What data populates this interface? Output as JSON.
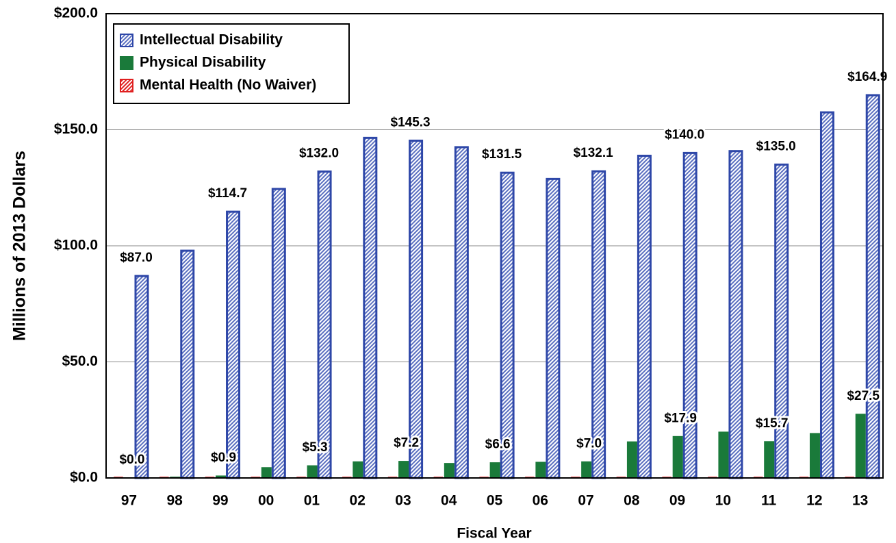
{
  "chart_data": {
    "type": "bar",
    "xlabel": "Fiscal Year",
    "ylabel": "Millions of 2013 Dollars",
    "categories": [
      "97",
      "98",
      "99",
      "00",
      "01",
      "02",
      "03",
      "04",
      "05",
      "06",
      "07",
      "08",
      "09",
      "10",
      "11",
      "12",
      "13"
    ],
    "series": [
      {
        "name": "Intellectual Disability",
        "color": "#2e47a8",
        "values": [
          87.0,
          97.9,
          114.7,
          124.5,
          132.0,
          146.5,
          145.3,
          142.5,
          131.5,
          128.8,
          132.1,
          138.8,
          140.0,
          140.8,
          135.0,
          157.5,
          164.9
        ],
        "value_labels": [
          "$87.0",
          null,
          "$114.7",
          null,
          "$132.0",
          null,
          "$145.3",
          null,
          "$131.5",
          null,
          "$132.1",
          null,
          "$140.0",
          null,
          "$135.0",
          null,
          "$164.9"
        ]
      },
      {
        "name": "Physical Disability",
        "color": "#1a7a3a",
        "values": [
          0.0,
          0.4,
          0.9,
          4.5,
          5.3,
          7.0,
          7.2,
          6.3,
          6.6,
          6.8,
          7.0,
          15.6,
          17.9,
          19.8,
          15.7,
          19.2,
          27.5
        ],
        "value_labels": [
          "$0.0",
          null,
          "$0.9",
          null,
          "$5.3",
          null,
          "$7.2",
          null,
          "$6.6",
          null,
          "$7.0",
          null,
          "$17.9",
          null,
          "$15.7",
          null,
          "$27.5"
        ]
      },
      {
        "name": "Mental Health (No Waiver)",
        "color": "#e02020",
        "values": [
          0.3,
          0.3,
          0.3,
          0.3,
          0.3,
          0.3,
          0.3,
          0.3,
          0.3,
          0.3,
          0.3,
          0.3,
          0.3,
          0.3,
          0.3,
          0.3,
          0.3
        ]
      }
    ],
    "ylim": [
      0,
      200
    ],
    "yticks": [
      {
        "value": 0,
        "label": "$0.0"
      },
      {
        "value": 50,
        "label": "$50.0"
      },
      {
        "value": 100,
        "label": "$100.0"
      },
      {
        "value": 150,
        "label": "$150.0"
      },
      {
        "value": 200,
        "label": "$200.0"
      }
    ],
    "grid": true,
    "legend": "upper left"
  }
}
